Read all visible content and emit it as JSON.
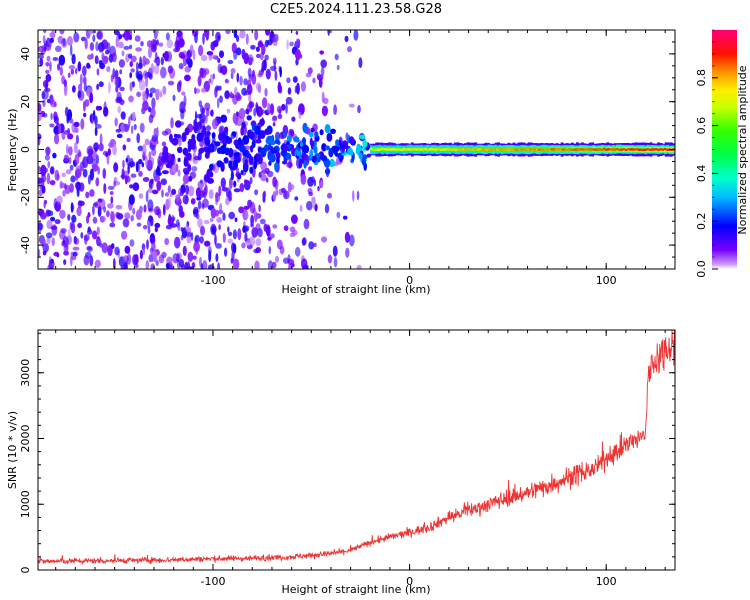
{
  "figure": {
    "title": "C2E5.2024.111.23.58.G28"
  },
  "colors": {
    "axis": "#000000",
    "snr_line": "#ee3333",
    "background": "#ffffff"
  },
  "chart_data": [
    {
      "type": "heatmap",
      "xlabel": "Height of straight line (km)",
      "ylabel": "Frequency (Hz)",
      "xlim": [
        -189,
        135
      ],
      "ylim": [
        -50,
        50
      ],
      "xticks": [
        -100,
        0,
        100
      ],
      "yticks": [
        -40,
        -20,
        0,
        20,
        40
      ],
      "xtick_labels": [
        "-100",
        "0",
        "100"
      ],
      "ytick_labels": [
        "-40",
        "-20",
        "0",
        "20",
        "40"
      ],
      "colorbar": {
        "label": "Normalized spectral amplitude",
        "range": [
          0,
          1
        ],
        "ticks": [
          0.0,
          0.2,
          0.4,
          0.6,
          0.8
        ],
        "tick_labels": [
          "0.0",
          "0.2",
          "0.4",
          "0.6",
          "0.8"
        ],
        "colormap": "gist_rainbow_r"
      },
      "description_regions": [
        {
          "x_range": [
            -189,
            -60
          ],
          "freq_range": [
            -50,
            50
          ],
          "amplitude": 0.15,
          "pattern": "scattered noise"
        },
        {
          "x_range": [
            -60,
            -20
          ],
          "freq_range": [
            -10,
            10
          ],
          "amplitude": 0.35,
          "pattern": "converging band"
        },
        {
          "x_range": [
            -20,
            135
          ],
          "freq_range": [
            -3,
            3
          ],
          "amplitude": 0.9,
          "pattern": "narrow carrier band"
        }
      ]
    },
    {
      "type": "line",
      "xlabel": "Height of straight line (km)",
      "ylabel": "SNR (10 * v/v)",
      "xlim": [
        -189,
        135
      ],
      "ylim": [
        0,
        3650
      ],
      "xticks": [
        -100,
        0,
        100
      ],
      "yticks": [
        0,
        1000,
        2000,
        3000
      ],
      "xtick_labels": [
        "-100",
        "0",
        "100"
      ],
      "ytick_labels": [
        "0",
        "1000",
        "2000",
        "3000"
      ],
      "series": [
        {
          "name": "SNR",
          "x": [
            -189,
            -160,
            -130,
            -100,
            -80,
            -60,
            -40,
            -30,
            -20,
            -10,
            0,
            10,
            20,
            30,
            40,
            50,
            60,
            70,
            80,
            90,
            95,
            100,
            110,
            120,
            121,
            122,
            125,
            130,
            135
          ],
          "values": [
            130,
            140,
            150,
            170,
            180,
            200,
            250,
            300,
            420,
            500,
            570,
            650,
            800,
            900,
            1000,
            1100,
            1180,
            1280,
            1400,
            1500,
            1550,
            1700,
            1900,
            2050,
            2800,
            3000,
            3200,
            3350,
            3500
          ]
        }
      ]
    }
  ]
}
